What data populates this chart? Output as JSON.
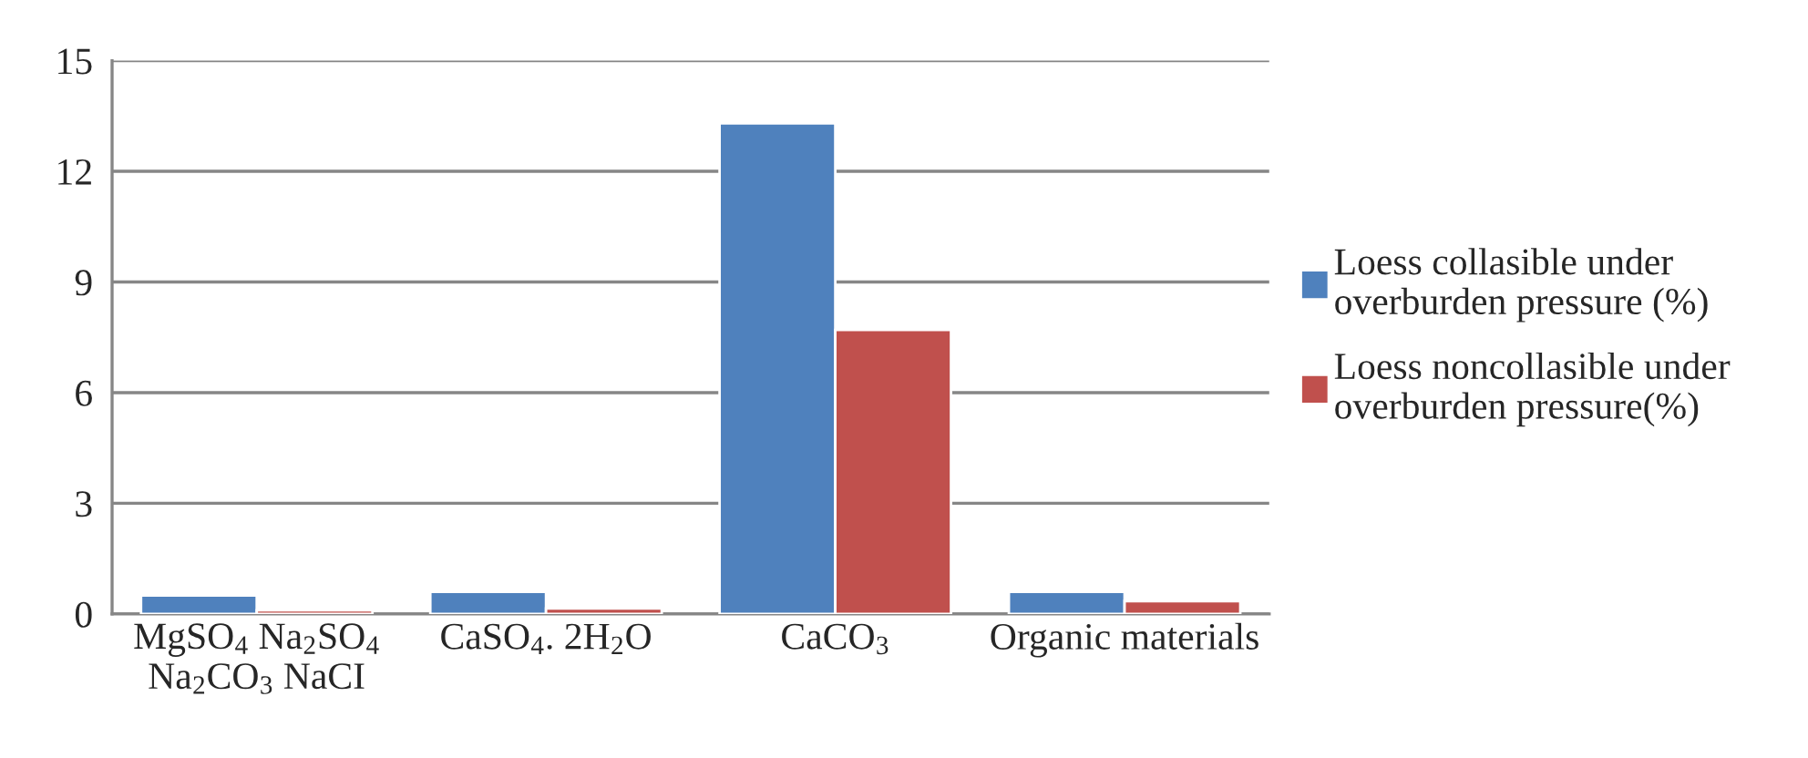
{
  "chart_data": {
    "type": "bar",
    "categories": [
      "MgSO$_{4}$ Na$_{2}$SO$_{4}$\nNa$_{2}$CO$_{3}$ NaCI",
      "CaSO$_{4}$. 2H$_{2}$O",
      "CaCO$_{3}$",
      "Organic materials"
    ],
    "series": [
      {
        "name": "Loess collasible under\noverburden pressure (%)",
        "color": "#4f81bd",
        "values": [
          0.5,
          0.6,
          13.3,
          0.6
        ]
      },
      {
        "name": "Loess noncollasible under\noverburden pressure(%)",
        "color": "#c0504d",
        "values": [
          0.1,
          0.15,
          7.7,
          0.35
        ]
      }
    ],
    "ylim": [
      0,
      15
    ],
    "yticks": [
      0,
      3,
      6,
      9,
      12,
      15
    ],
    "grid": "y",
    "legend": "right"
  }
}
